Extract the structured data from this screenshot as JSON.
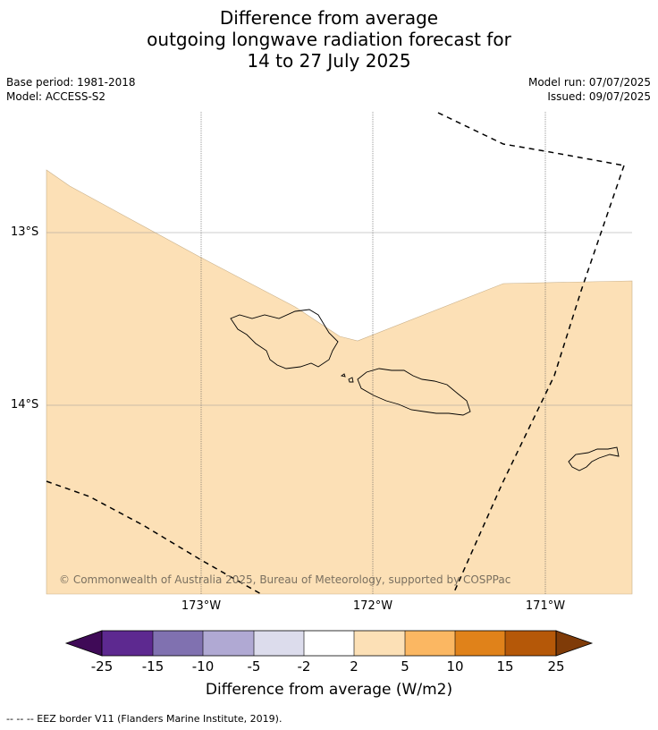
{
  "header": {
    "title_line1": "Difference from average",
    "title_line2": "outgoing longwave radiation forecast for",
    "title_line3": "14 to 27 July 2025",
    "base_period": "Base period: 1981-2018",
    "model": "Model: ACCESS-S2",
    "model_run": "Model run: 07/07/2025",
    "issued": "Issued: 09/07/2025"
  },
  "map": {
    "lat_labels": [
      "13°S",
      "14°S"
    ],
    "lon_labels": [
      "173°W",
      "172°W",
      "171°W"
    ],
    "ocean_fill_color": "#fce0b6",
    "no_data_color": "#ffffff",
    "coastline_color": "#000000",
    "eez_color": "#000000",
    "copyright": "© Commonwealth of Australia 2025, Bureau of Meteorology, supported by COSPPac"
  },
  "colorbar": {
    "tick_labels": [
      "-25",
      "-15",
      "-10",
      "-5",
      "-2",
      "2",
      "5",
      "10",
      "15",
      "25"
    ],
    "colors": [
      "#3f0a57",
      "#5d2990",
      "#8071b0",
      "#b0a9d3",
      "#dcdcec",
      "#ffffff",
      "#fce0b6",
      "#fbb762",
      "#e0821a",
      "#b55808",
      "#7f3b08"
    ],
    "label": "Difference from average (W/m2)"
  },
  "legend": {
    "eez": "--  --  -- EEZ border V11 (Flanders Marine Institute, 2019)."
  }
}
